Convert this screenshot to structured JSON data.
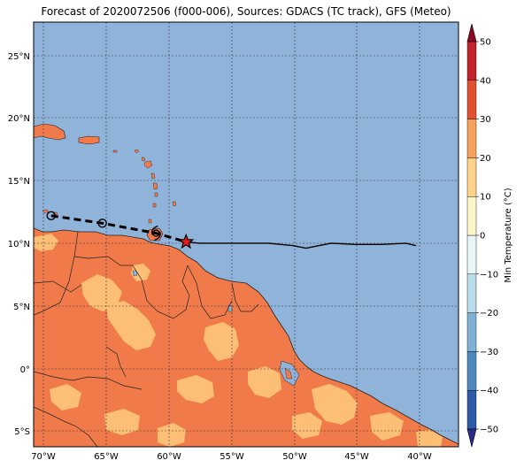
{
  "title": "Forecast of 2020072506 (f000-006), Sources: GDACS (TC track), GFS (Meteo)",
  "lat_labels": [
    "25°N",
    "20°N",
    "15°N",
    "10°N",
    "5°N",
    "0°",
    "5°S"
  ],
  "lon_labels": [
    "70°W",
    "65°W",
    "60°W",
    "55°W",
    "50°W",
    "45°W",
    "40°W"
  ],
  "colorbar": {
    "label": "Min Temperature (°C)",
    "ticks": [
      "50",
      "40",
      "30",
      "20",
      "10",
      "0",
      "−10",
      "−20",
      "−30",
      "−40",
      "−50"
    ],
    "colors": [
      "#2a2a8c",
      "#2f5aa8",
      "#4f88be",
      "#7fb1d6",
      "#b9dbea",
      "#e9f6f8",
      "#fdf6c8",
      "#fed28a",
      "#f6a25c",
      "#e1502f",
      "#c0242a",
      "#8a0a24"
    ]
  },
  "colors": {
    "ocean": "#8fb3d9",
    "land_warm": "#f07a4a",
    "land_mild": "#fdbf75",
    "track": "#000000",
    "storm_marker": "#e41a1c"
  },
  "track": {
    "forecast_points": [
      [
        -69.4,
        12.2
      ],
      [
        -65.3,
        11.6
      ],
      [
        -61.0,
        10.8
      ]
    ],
    "current_position": [
      -58.6,
      10.1
    ],
    "history": [
      [
        -58.6,
        10.1
      ],
      [
        -57.5,
        10.0
      ],
      [
        -55.0,
        10.0
      ],
      [
        -52.0,
        10.0
      ],
      [
        -50.0,
        9.8
      ],
      [
        -49.0,
        9.6
      ],
      [
        -48.0,
        9.8
      ],
      [
        -47.0,
        10.0
      ],
      [
        -45.0,
        9.9
      ],
      [
        -43.0,
        9.9
      ],
      [
        -41.0,
        10.0
      ],
      [
        -40.2,
        9.8
      ]
    ]
  }
}
